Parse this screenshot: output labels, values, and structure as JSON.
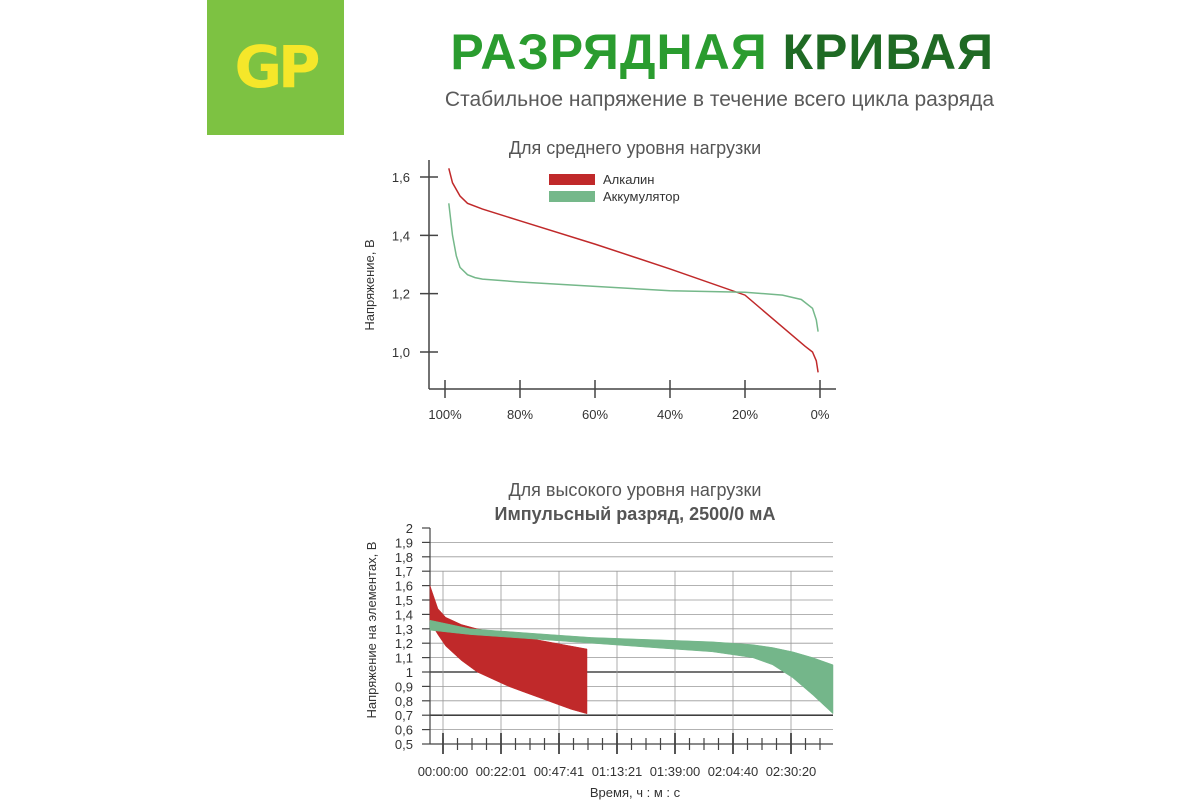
{
  "brand": {
    "logo_text": "GP",
    "logo_color": "#7dc242",
    "logo_text_color": "#f5e72a"
  },
  "header": {
    "title_part1": "РАЗРЯДНАЯ",
    "title_part2": "КРИВАЯ",
    "subtitle": "Стабильное напряжение в течение всего цикла разряда"
  },
  "chart_data": [
    {
      "type": "line",
      "title": "Для среднего уровня нагрузки",
      "xlabel": "",
      "ylabel": "Напряжение, В",
      "x_ticks": [
        "100%",
        "80%",
        "60%",
        "40%",
        "20%",
        "0%"
      ],
      "y_ticks": [
        "1,6",
        "1,4",
        "1,2",
        "1,0"
      ],
      "ylim": [
        0.9,
        1.7
      ],
      "xlim": [
        100,
        0
      ],
      "legend_position": "top-center",
      "series": [
        {
          "name": "Алкалин",
          "color": "#c0292a",
          "x": [
            99,
            98,
            96,
            94,
            90,
            80,
            60,
            40,
            20,
            4,
            2,
            1,
            0.5
          ],
          "y": [
            1.63,
            1.58,
            1.535,
            1.51,
            1.49,
            1.45,
            1.37,
            1.285,
            1.195,
            1.02,
            1.0,
            0.97,
            0.93
          ]
        },
        {
          "name": "Аккумулятор",
          "color": "#75b88a",
          "x": [
            99,
            98,
            97,
            96,
            94,
            92,
            90,
            80,
            60,
            40,
            20,
            10,
            5,
            2,
            1,
            0.5
          ],
          "y": [
            1.51,
            1.4,
            1.33,
            1.29,
            1.265,
            1.255,
            1.25,
            1.24,
            1.225,
            1.21,
            1.205,
            1.195,
            1.18,
            1.15,
            1.11,
            1.07
          ]
        }
      ]
    },
    {
      "type": "area",
      "title": "Для высокого уровня нагрузки",
      "subtitle": "Импульсный разряд, 2500/0 мА",
      "xlabel": "Время, ч : м : с",
      "ylabel": "Напряжение на элементах, В",
      "x_ticks": [
        "00:00:00",
        "00:22:01",
        "00:47:41",
        "01:13:21",
        "01:39:00",
        "02:04:40",
        "02:30:20"
      ],
      "y_ticks": [
        "2",
        "1,9",
        "1,8",
        "1,7",
        "1,6",
        "1,5",
        "1,4",
        "1,3",
        "1,2",
        "1,1",
        "1",
        "0,9",
        "0,8",
        "0,7",
        "0,6",
        "0,5"
      ],
      "ylim": [
        0.5,
        2.0
      ],
      "series": [
        {
          "name": "",
          "color": "#c0292a",
          "x": [
            0,
            0.05,
            0.1,
            0.2,
            0.3,
            0.4,
            0.5,
            0.6,
            0.7,
            0.8,
            0.9,
            1.0
          ],
          "upper": [
            1.6,
            1.44,
            1.38,
            1.33,
            1.3,
            1.28,
            1.26,
            1.24,
            1.22,
            1.2,
            1.18,
            1.16
          ],
          "lower": [
            1.35,
            1.26,
            1.18,
            1.08,
            1.0,
            0.95,
            0.9,
            0.86,
            0.82,
            0.78,
            0.74,
            0.71
          ]
        },
        {
          "name": "",
          "color": "#74b68a",
          "x": [
            0,
            0.1,
            0.2,
            0.3,
            0.4,
            0.5,
            0.6,
            0.7,
            0.8,
            0.85,
            0.9,
            0.95,
            1.0
          ],
          "upper": [
            1.36,
            1.3,
            1.28,
            1.26,
            1.24,
            1.23,
            1.22,
            1.21,
            1.19,
            1.17,
            1.14,
            1.1,
            1.05
          ],
          "lower": [
            1.29,
            1.26,
            1.24,
            1.22,
            1.2,
            1.18,
            1.16,
            1.14,
            1.1,
            1.05,
            0.96,
            0.84,
            0.71
          ]
        }
      ]
    }
  ]
}
